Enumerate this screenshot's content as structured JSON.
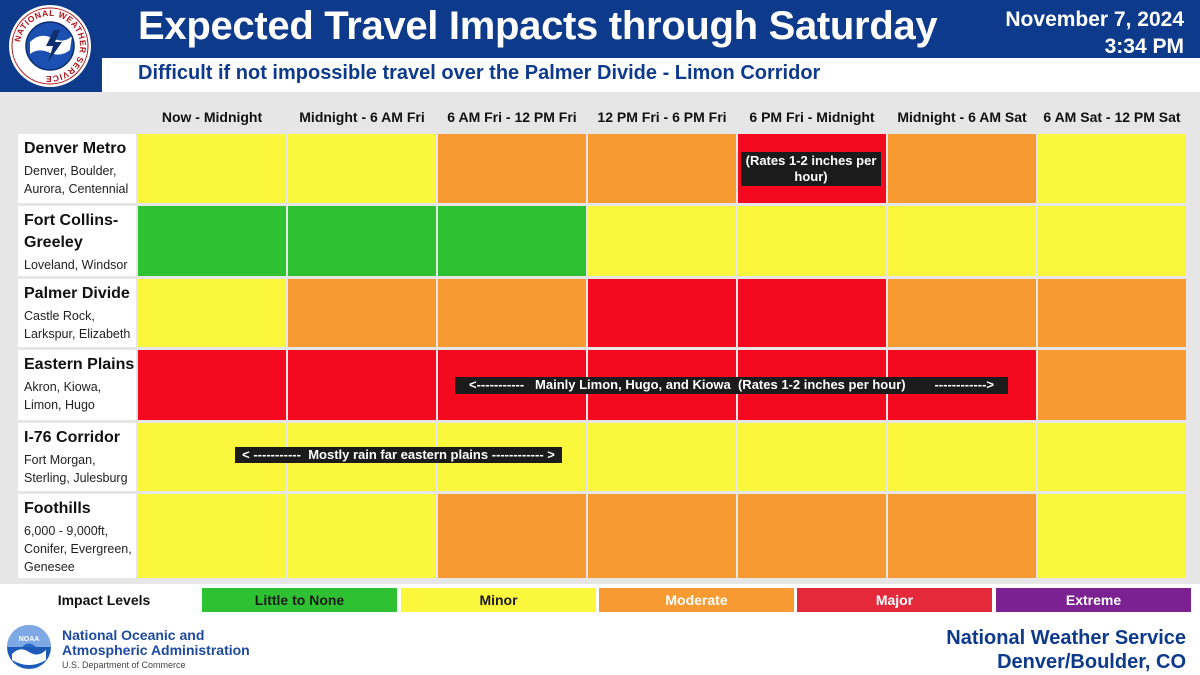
{
  "header": {
    "logo_text": "NATIONAL WEATHER SERVICE",
    "title": "Expected Travel Impacts through Saturday",
    "date": "November 7, 2024",
    "time": "3:34 PM",
    "subtitle": "Difficult if not impossible travel over the Palmer Divide - Limon Corridor"
  },
  "columns": [
    "Now - Midnight",
    "Midnight - 6 AM Fri",
    "6 AM Fri - 12 PM Fri",
    "12 PM Fri - 6 PM Fri",
    "6 PM Fri - Midnight",
    "Midnight - 6 AM Sat",
    "6 AM Sat - 12 PM Sat"
  ],
  "rows": [
    {
      "title": "Denver Metro",
      "subtitle": "Denver, Boulder, Aurora, Centennial",
      "levels": [
        2,
        2,
        3,
        3,
        4,
        3,
        2
      ]
    },
    {
      "title": "Fort Collins-Greeley",
      "subtitle": "Loveland, Windsor",
      "levels": [
        1,
        1,
        1,
        2,
        2,
        2,
        2
      ]
    },
    {
      "title": "Palmer Divide",
      "subtitle": "Castle Rock, Larkspur, Elizabeth",
      "levels": [
        2,
        3,
        3,
        4,
        4,
        3,
        3
      ]
    },
    {
      "title": "Eastern Plains",
      "subtitle": "Akron, Kiowa, Limon, Hugo",
      "levels": [
        4,
        4,
        4,
        4,
        4,
        4,
        3
      ]
    },
    {
      "title": "I-76 Corridor",
      "subtitle": "Fort Morgan, Sterling, Julesburg",
      "levels": [
        2,
        2,
        2,
        2,
        2,
        2,
        2
      ]
    },
    {
      "title": "Foothills",
      "subtitle": "6,000 - 9,000ft, Conifer, Evergreen, Genesee",
      "levels": [
        2,
        2,
        3,
        3,
        3,
        3,
        2
      ]
    }
  ],
  "notes": {
    "denver_rates": "(Rates 1-2 inches per hour)",
    "eastern_plains": "<-----------   Mainly Limon, Hugo, and Kiowa  (Rates 1-2 inches per hour)        ------------>",
    "i76_rain": "< -----------  Mostly rain far eastern plains ------------ >"
  },
  "legend": {
    "label": "Impact Levels",
    "items": [
      {
        "label": "Little to None",
        "color": "#2ec232",
        "text_color": "#1a1a1a"
      },
      {
        "label": "Minor",
        "color": "#fbf73c",
        "text_color": "#1a1a1a"
      },
      {
        "label": "Moderate",
        "color": "#f79a32",
        "text_color": "#ffffff"
      },
      {
        "label": "Major",
        "color": "#e3293a",
        "text_color": "#ffffff"
      },
      {
        "label": "Extreme",
        "color": "#7c2191",
        "text_color": "#ffffff"
      }
    ]
  },
  "footer": {
    "noaa_logo_text": "NOAA",
    "noaa_line1": "National Oceanic and",
    "noaa_line2": "Atmospheric Administration",
    "noaa_dept": "U.S. Department of Commerce",
    "nws_line1": "National Weather Service",
    "nws_line2": "Denver/Boulder, CO"
  },
  "colors": {
    "header_blue": "#0e3a8c",
    "green": "#2ec232",
    "yellow": "#fbf73c",
    "orange": "#f79a32",
    "red": "#f5091f"
  }
}
